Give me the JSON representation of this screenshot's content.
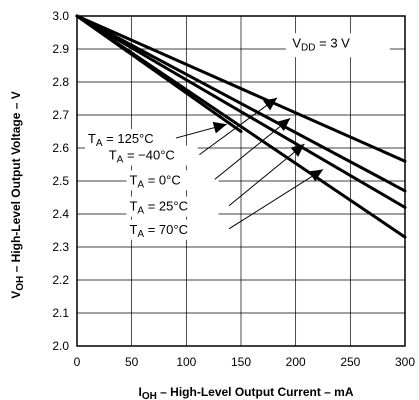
{
  "chart_data": {
    "type": "line",
    "xlabel": "I_OH – High-Level Output Current – mA",
    "xlabel_main": "I",
    "xlabel_sub": "OH",
    "xlabel_rest": " – High-Level Output Current – mA",
    "ylabel": "V_OH – High-Level Output Voltage – V",
    "ylabel_main": "V",
    "ylabel_sub": "OH",
    "ylabel_rest": " – High-Level Output Voltage – V",
    "xlim": [
      0,
      300
    ],
    "ylim": [
      2.0,
      3.0
    ],
    "grid": true,
    "x_ticks": [
      0,
      50,
      100,
      150,
      200,
      250,
      300
    ],
    "y_ticks": [
      2.0,
      2.1,
      2.2,
      2.3,
      2.4,
      2.5,
      2.6,
      2.7,
      2.8,
      2.9,
      3.0
    ],
    "condition": {
      "main": "V",
      "sub": "DD",
      "rest": " = 3 V"
    },
    "series": [
      {
        "name": "TA = 125°C",
        "label_main": "T",
        "label_sub": "A",
        "label_rest": " = 125°C",
        "x": [
          0,
          150
        ],
        "y": [
          3.0,
          2.65
        ]
      },
      {
        "name": "TA = −40°C",
        "label_main": "T",
        "label_sub": "A",
        "label_rest": " = −40°C",
        "x": [
          0,
          300
        ],
        "y": [
          3.0,
          2.56
        ]
      },
      {
        "name": "TA = 0°C",
        "label_main": "T",
        "label_sub": "A",
        "label_rest": " = 0°C",
        "x": [
          0,
          300
        ],
        "y": [
          3.0,
          2.47
        ]
      },
      {
        "name": "TA = 25°C",
        "label_main": "T",
        "label_sub": "A",
        "label_rest": " = 25°C",
        "x": [
          0,
          300
        ],
        "y": [
          3.0,
          2.42
        ]
      },
      {
        "name": "TA = 70°C",
        "label_main": "T",
        "label_sub": "A",
        "label_rest": " = 70°C",
        "x": [
          0,
          300
        ],
        "y": [
          3.0,
          2.33
        ]
      }
    ],
    "annotations": [
      {
        "series": 0,
        "text_x": 10,
        "text_y": 2.615,
        "leader_to": [
          10,
          2.615
        ],
        "arrow_at": [
          137,
          2.672
        ]
      },
      {
        "series": 1,
        "text_x": 29,
        "text_y": 2.565,
        "leader_to": [
          112,
          2.58
        ],
        "arrow_at": [
          183,
          2.752
        ]
      },
      {
        "series": 2,
        "text_x": 48,
        "text_y": 2.49,
        "leader_to": [
          126,
          2.505
        ],
        "arrow_at": [
          195,
          2.69
        ]
      },
      {
        "series": 3,
        "text_x": 48,
        "text_y": 2.41,
        "leader_to": [
          139,
          2.425
        ],
        "arrow_at": [
          208,
          2.612
        ]
      },
      {
        "series": 4,
        "text_x": 48,
        "text_y": 2.34,
        "leader_to": [
          139,
          2.355
        ],
        "arrow_at": [
          225,
          2.535
        ]
      }
    ]
  }
}
